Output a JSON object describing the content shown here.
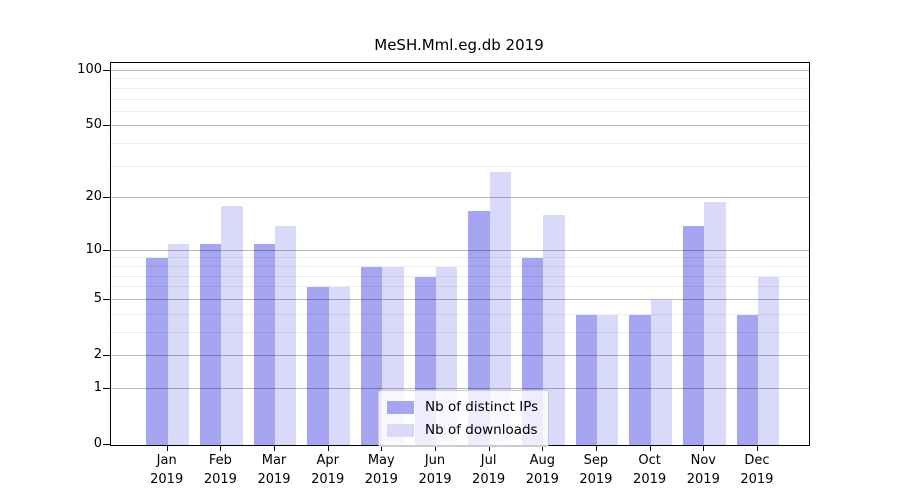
{
  "chart_data": {
    "type": "bar",
    "title": "MeSH.Mml.eg.db 2019",
    "categories": [
      "Jan 2019",
      "Feb 2019",
      "Mar 2019",
      "Apr 2019",
      "May 2019",
      "Jun 2019",
      "Jul 2019",
      "Aug 2019",
      "Sep 2019",
      "Oct 2019",
      "Nov 2019",
      "Dec 2019"
    ],
    "category_lines": [
      {
        "month": "Jan",
        "year": "2019"
      },
      {
        "month": "Feb",
        "year": "2019"
      },
      {
        "month": "Mar",
        "year": "2019"
      },
      {
        "month": "Apr",
        "year": "2019"
      },
      {
        "month": "May",
        "year": "2019"
      },
      {
        "month": "Jun",
        "year": "2019"
      },
      {
        "month": "Jul",
        "year": "2019"
      },
      {
        "month": "Aug",
        "year": "2019"
      },
      {
        "month": "Sep",
        "year": "2019"
      },
      {
        "month": "Oct",
        "year": "2019"
      },
      {
        "month": "Nov",
        "year": "2019"
      },
      {
        "month": "Dec",
        "year": "2019"
      }
    ],
    "series": [
      {
        "name": "Nb of distinct IPs",
        "color": "#a5a5f2",
        "values": [
          9,
          11,
          11,
          6,
          8,
          7,
          17,
          9,
          4,
          4,
          14,
          4
        ]
      },
      {
        "name": "Nb of downloads",
        "color": "#d9d9f9",
        "values": [
          11,
          18,
          14,
          6,
          8,
          8,
          28,
          16,
          4,
          5,
          19,
          7
        ]
      }
    ],
    "yscale": "log1p",
    "ylim": [
      0,
      110
    ],
    "y_major_ticks": [
      0,
      1,
      2,
      5,
      10,
      20,
      50,
      100
    ],
    "y_minor_ticks": [
      3,
      4,
      6,
      7,
      8,
      9,
      30,
      40,
      60,
      70,
      80,
      90
    ],
    "grid": "on",
    "legend_position": "lower center"
  },
  "legend": {
    "items": [
      {
        "label": "Nb of distinct IPs",
        "color": "#a5a5f2"
      },
      {
        "label": "Nb of downloads",
        "color": "#d9d9f9"
      }
    ]
  }
}
